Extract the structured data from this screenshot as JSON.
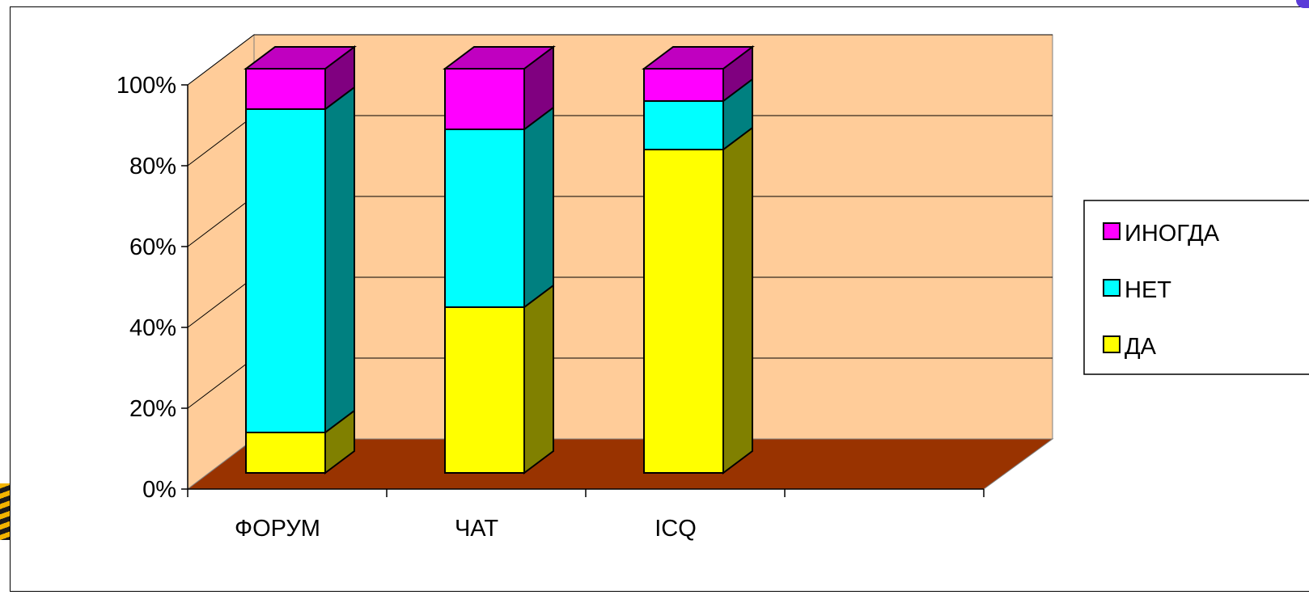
{
  "chart_data": {
    "type": "bar",
    "stacked": true,
    "three_d": true,
    "percent_stacked": true,
    "title": "",
    "xlabel": "",
    "ylabel": "",
    "categories": [
      "ФОРУМ",
      "ЧАТ",
      "ICQ"
    ],
    "series": [
      {
        "name": "ДА",
        "values": [
          10,
          41,
          80
        ],
        "color": "#ffff00",
        "side_color": "#808000"
      },
      {
        "name": "НЕТ",
        "values": [
          80,
          44,
          12
        ],
        "color": "#00ffff",
        "side_color": "#008080"
      },
      {
        "name": "ИНОГДА",
        "values": [
          10,
          15,
          8
        ],
        "color": "#ff00ff",
        "side_color": "#800080"
      }
    ],
    "yticks": [
      "0%",
      "20%",
      "40%",
      "60%",
      "80%",
      "100%"
    ],
    "ylim": [
      0,
      100
    ],
    "grid": true,
    "legend": "right",
    "wall_color": "#ffcc99",
    "floor_color": "#993300"
  }
}
